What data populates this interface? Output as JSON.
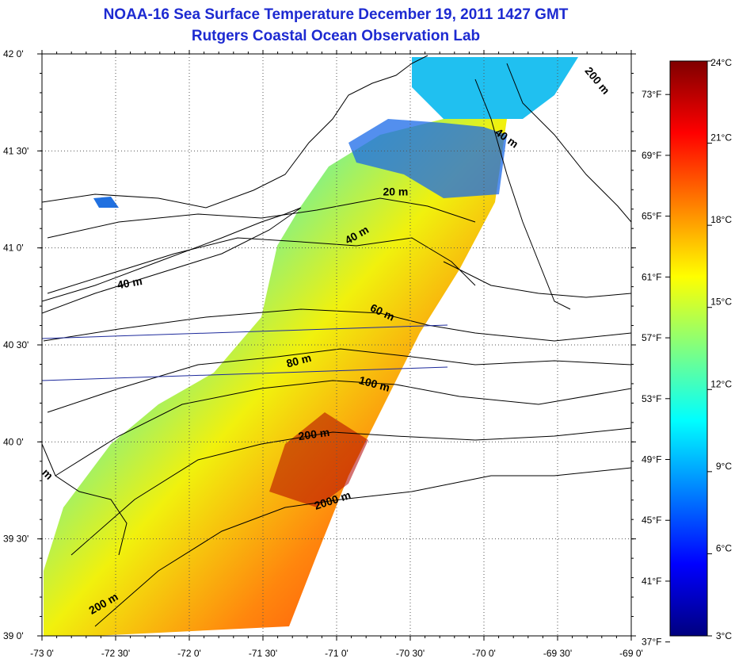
{
  "header": {
    "title": "NOAA-16 Sea Surface Temperature December 19, 2011 1427 GMT",
    "subtitle": "Rutgers Coastal Ocean Observation Lab"
  },
  "map": {
    "lat_range": [
      39.0,
      42.0
    ],
    "lon_range": [
      -73.0,
      -69.0
    ],
    "grid": "dotted",
    "lat_ticks": [
      {
        "value": 39.0,
        "label": "39 0'"
      },
      {
        "value": 39.5,
        "label": "39 30'"
      },
      {
        "value": 40.0,
        "label": "40 0'"
      },
      {
        "value": 40.5,
        "label": "40 30'"
      },
      {
        "value": 41.0,
        "label": "41 0'"
      },
      {
        "value": 41.5,
        "label": "41 30'"
      },
      {
        "value": 42.0,
        "label": "42 0'"
      }
    ],
    "lon_ticks": [
      {
        "value": -73.0,
        "label": "-73 0'"
      },
      {
        "value": -72.5,
        "label": "-72 30'"
      },
      {
        "value": -72.0,
        "label": "-72 0'"
      },
      {
        "value": -71.5,
        "label": "-71 30'"
      },
      {
        "value": -71.0,
        "label": "-71 0'"
      },
      {
        "value": -70.5,
        "label": "-70 30'"
      },
      {
        "value": -70.0,
        "label": "-70 0'"
      },
      {
        "value": -69.5,
        "label": "-69 30'"
      },
      {
        "value": -69.0,
        "label": "-69 0'"
      }
    ],
    "isobath_labels": [
      {
        "text": "200 m",
        "lon": -69.25,
        "lat": 41.85,
        "rotate": 50
      },
      {
        "text": "40 m",
        "lon": -69.86,
        "lat": 41.55,
        "rotate": 35
      },
      {
        "text": "20 m",
        "lon": -70.6,
        "lat": 41.27,
        "rotate": 0
      },
      {
        "text": "40 m",
        "lon": -70.85,
        "lat": 41.05,
        "rotate": -30
      },
      {
        "text": "40 m",
        "lon": -72.4,
        "lat": 40.8,
        "rotate": -10
      },
      {
        "text": "60 m",
        "lon": -70.7,
        "lat": 40.65,
        "rotate": 25
      },
      {
        "text": "80 m",
        "lon": -71.25,
        "lat": 40.4,
        "rotate": -15
      },
      {
        "text": "100 m",
        "lon": -70.75,
        "lat": 40.28,
        "rotate": 15
      },
      {
        "text": "200 m",
        "lon": -71.15,
        "lat": 40.02,
        "rotate": -8
      },
      {
        "text": "2000 m",
        "lon": -71.02,
        "lat": 39.68,
        "rotate": -18
      },
      {
        "text": "200 m",
        "lon": -72.57,
        "lat": 39.15,
        "rotate": -30
      },
      {
        "text": "m",
        "lon": -72.98,
        "lat": 39.82,
        "rotate": 45
      }
    ]
  },
  "colorbar": {
    "celsius_labels": [
      {
        "value": 24,
        "label": "24°C"
      },
      {
        "value": 21,
        "label": "21°C"
      },
      {
        "value": 18,
        "label": "18°C"
      },
      {
        "value": 15,
        "label": "15°C"
      },
      {
        "value": 12,
        "label": "12°C"
      },
      {
        "value": 9,
        "label": "9°C"
      },
      {
        "value": 6,
        "label": "6°C"
      },
      {
        "value": 3,
        "label": "3°C"
      }
    ],
    "fahrenheit_labels": [
      {
        "value": 73,
        "label": "73°F"
      },
      {
        "value": 69,
        "label": "69°F"
      },
      {
        "value": 65,
        "label": "65°F"
      },
      {
        "value": 61,
        "label": "61°F"
      },
      {
        "value": 57,
        "label": "57°F"
      },
      {
        "value": 53,
        "label": "53°F"
      },
      {
        "value": 49,
        "label": "49°F"
      },
      {
        "value": 45,
        "label": "45°F"
      },
      {
        "value": 41,
        "label": "41°F"
      },
      {
        "value": 37,
        "label": "37°F"
      }
    ],
    "colors": [
      "#7f0000",
      "#ff0000",
      "#ff8000",
      "#ffff00",
      "#80ff80",
      "#00ffff",
      "#0080ff",
      "#0000ff",
      "#00007f"
    ]
  }
}
